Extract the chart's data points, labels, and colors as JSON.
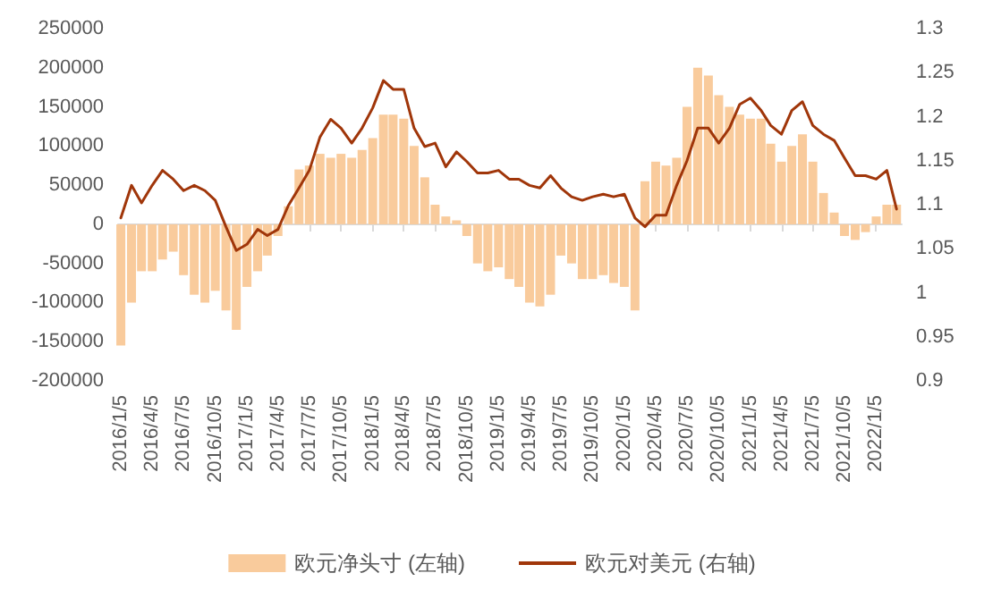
{
  "chart_data": {
    "type": "bar",
    "x": [
      "2016-01-05",
      "2016-02-05",
      "2016-03-05",
      "2016-04-05",
      "2016-05-05",
      "2016-06-05",
      "2016-07-05",
      "2016-08-05",
      "2016-09-05",
      "2016-10-05",
      "2016-11-05",
      "2016-12-05",
      "2017-01-05",
      "2017-02-05",
      "2017-03-05",
      "2017-04-05",
      "2017-05-05",
      "2017-06-05",
      "2017-07-05",
      "2017-08-05",
      "2017-09-05",
      "2017-10-05",
      "2017-11-05",
      "2017-12-05",
      "2018-01-05",
      "2018-02-05",
      "2018-03-05",
      "2018-04-05",
      "2018-05-05",
      "2018-06-05",
      "2018-07-05",
      "2018-08-05",
      "2018-09-05",
      "2018-10-05",
      "2018-11-05",
      "2018-12-05",
      "2019-01-05",
      "2019-02-05",
      "2019-03-05",
      "2019-04-05",
      "2019-05-05",
      "2019-06-05",
      "2019-07-05",
      "2019-08-05",
      "2019-09-05",
      "2019-10-05",
      "2019-11-05",
      "2019-12-05",
      "2020-01-05",
      "2020-02-05",
      "2020-03-05",
      "2020-04-05",
      "2020-05-05",
      "2020-06-05",
      "2020-07-05",
      "2020-08-05",
      "2020-09-05",
      "2020-10-05",
      "2020-11-05",
      "2020-12-05",
      "2021-01-05",
      "2021-02-05",
      "2021-03-05",
      "2021-04-05",
      "2021-05-05",
      "2021-06-05",
      "2021-07-05",
      "2021-08-05",
      "2021-09-05",
      "2021-10-05",
      "2021-11-05",
      "2021-12-05",
      "2022-01-05",
      "2022-02-05",
      "2022-03-05"
    ],
    "series": [
      {
        "name": "欧元净头寸 (左轴)",
        "color": "#f9cb9c",
        "values": [
          -155000,
          -100000,
          -60000,
          -60000,
          -45000,
          -35000,
          -65000,
          -90000,
          -100000,
          -85000,
          -110000,
          -135000,
          -80000,
          -60000,
          -40000,
          -15000,
          23000,
          70000,
          75000,
          90000,
          85000,
          90000,
          85000,
          95000,
          110000,
          140000,
          140000,
          135000,
          100000,
          60000,
          25000,
          10000,
          5000,
          -15000,
          -50000,
          -60000,
          -55000,
          -70000,
          -80000,
          -100000,
          -105000,
          -90000,
          -40000,
          -50000,
          -70000,
          -70000,
          -65000,
          -75000,
          -80000,
          -110000,
          55000,
          80000,
          75000,
          85000,
          150000,
          200000,
          190000,
          165000,
          150000,
          140000,
          135000,
          135000,
          103000,
          80000,
          100000,
          115000,
          80000,
          40000,
          15000,
          -15000,
          -20000,
          -10000,
          10000,
          25000,
          25000
        ]
      },
      {
        "name": "欧元对美元 (右轴)",
        "type": "line",
        "axis": "y2",
        "color": "#a0360a",
        "values": [
          1.085,
          1.122,
          1.102,
          1.122,
          1.139,
          1.129,
          1.116,
          1.122,
          1.116,
          1.105,
          1.075,
          1.048,
          1.055,
          1.072,
          1.065,
          1.072,
          1.099,
          1.119,
          1.139,
          1.177,
          1.197,
          1.187,
          1.17,
          1.187,
          1.21,
          1.241,
          1.231,
          1.231,
          1.187,
          1.166,
          1.17,
          1.143,
          1.16,
          1.149,
          1.136,
          1.136,
          1.139,
          1.129,
          1.129,
          1.122,
          1.119,
          1.133,
          1.119,
          1.109,
          1.105,
          1.109,
          1.112,
          1.109,
          1.112,
          1.085,
          1.075,
          1.088,
          1.088,
          1.122,
          1.15,
          1.187,
          1.187,
          1.17,
          1.187,
          1.214,
          1.221,
          1.207,
          1.19,
          1.18,
          1.207,
          1.217,
          1.19,
          1.18,
          1.173,
          1.153,
          1.133,
          1.133,
          1.129,
          1.139,
          1.095
        ]
      }
    ],
    "xlim": [
      "2015-12-28",
      "2022-03-20"
    ],
    "xticks": [
      {
        "value": "2016-01-05",
        "label": "2016/1/5"
      },
      {
        "value": "2016-04-05",
        "label": "2016/4/5"
      },
      {
        "value": "2016-07-05",
        "label": "2016/7/5"
      },
      {
        "value": "2016-10-05",
        "label": "2016/10/5"
      },
      {
        "value": "2017-01-05",
        "label": "2017/1/5"
      },
      {
        "value": "2017-04-05",
        "label": "2017/4/5"
      },
      {
        "value": "2017-07-05",
        "label": "2017/7/5"
      },
      {
        "value": "2017-10-05",
        "label": "2017/10/5"
      },
      {
        "value": "2018-01-05",
        "label": "2018/1/5"
      },
      {
        "value": "2018-04-05",
        "label": "2018/4/5"
      },
      {
        "value": "2018-07-05",
        "label": "2018/7/5"
      },
      {
        "value": "2018-10-05",
        "label": "2018/10/5"
      },
      {
        "value": "2019-01-05",
        "label": "2019/1/5"
      },
      {
        "value": "2019-04-05",
        "label": "2019/4/5"
      },
      {
        "value": "2019-07-05",
        "label": "2019/7/5"
      },
      {
        "value": "2019-10-05",
        "label": "2019/10/5"
      },
      {
        "value": "2020-01-05",
        "label": "2020/1/5"
      },
      {
        "value": "2020-04-05",
        "label": "2020/4/5"
      },
      {
        "value": "2020-07-05",
        "label": "2020/7/5"
      },
      {
        "value": "2020-10-05",
        "label": "2020/10/5"
      },
      {
        "value": "2021-01-05",
        "label": "2021/1/5"
      },
      {
        "value": "2021-04-05",
        "label": "2021/4/5"
      },
      {
        "value": "2021-07-05",
        "label": "2021/7/5"
      },
      {
        "value": "2021-10-05",
        "label": "2021/10/5"
      },
      {
        "value": "2022-01-05",
        "label": "2022/1/5"
      }
    ],
    "ylim": [
      -200000,
      250000
    ],
    "yticks": [
      -200000,
      -150000,
      -100000,
      -50000,
      0,
      50000,
      100000,
      150000,
      200000,
      250000
    ],
    "y2lim": [
      0.9,
      1.3
    ],
    "y2ticks": [
      0.9,
      0.95,
      1,
      1.05,
      1.1,
      1.15,
      1.2,
      1.25,
      1.3
    ],
    "legend": "bottom",
    "marker": "none"
  }
}
